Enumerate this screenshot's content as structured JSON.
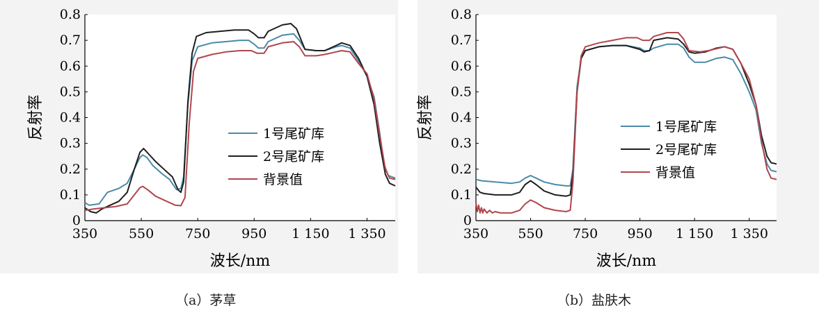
{
  "chart_data": [
    {
      "type": "line",
      "caption": "（a）茅草",
      "xlabel": "波长/nm",
      "ylabel": "反射率",
      "xlim": [
        350,
        1450
      ],
      "ylim": [
        0,
        0.8
      ],
      "xticks": [
        350,
        550,
        750,
        950,
        1150,
        1350
      ],
      "xtick_labels": [
        "350",
        "550",
        "750",
        "950",
        "1 150",
        "1 350"
      ],
      "yticks": [
        0,
        0.1,
        0.2,
        0.3,
        0.4,
        0.5,
        0.6,
        0.7,
        0.8
      ],
      "ytick_labels": [
        "0",
        "0.1",
        "0.2",
        "0.3",
        "0.4",
        "0.5",
        "0.6",
        "0.7",
        "0.8"
      ],
      "legend_position": "center-right",
      "series": [
        {
          "name": "1号尾矿库",
          "color": "#4a8aa8",
          "points": [
            [
              350,
              0.07
            ],
            [
              365,
              0.06
            ],
            [
              400,
              0.065
            ],
            [
              430,
              0.11
            ],
            [
              470,
              0.125
            ],
            [
              500,
              0.145
            ],
            [
              525,
              0.2
            ],
            [
              545,
              0.245
            ],
            [
              555,
              0.255
            ],
            [
              570,
              0.245
            ],
            [
              590,
              0.215
            ],
            [
              620,
              0.185
            ],
            [
              650,
              0.16
            ],
            [
              675,
              0.12
            ],
            [
              690,
              0.125
            ],
            [
              700,
              0.17
            ],
            [
              715,
              0.45
            ],
            [
              730,
              0.62
            ],
            [
              750,
              0.675
            ],
            [
              800,
              0.69
            ],
            [
              850,
              0.695
            ],
            [
              900,
              0.7
            ],
            [
              930,
              0.7
            ],
            [
              950,
              0.685
            ],
            [
              965,
              0.67
            ],
            [
              985,
              0.67
            ],
            [
              1000,
              0.695
            ],
            [
              1050,
              0.72
            ],
            [
              1090,
              0.725
            ],
            [
              1110,
              0.7
            ],
            [
              1130,
              0.665
            ],
            [
              1170,
              0.66
            ],
            [
              1200,
              0.66
            ],
            [
              1240,
              0.675
            ],
            [
              1260,
              0.68
            ],
            [
              1290,
              0.67
            ],
            [
              1320,
              0.62
            ],
            [
              1350,
              0.56
            ],
            [
              1375,
              0.48
            ],
            [
              1395,
              0.34
            ],
            [
              1410,
              0.22
            ],
            [
              1425,
              0.175
            ],
            [
              1450,
              0.165
            ]
          ]
        },
        {
          "name": "2号尾矿库",
          "color": "#1e1e1e",
          "points": [
            [
              350,
              0.05
            ],
            [
              370,
              0.035
            ],
            [
              390,
              0.03
            ],
            [
              410,
              0.045
            ],
            [
              440,
              0.06
            ],
            [
              470,
              0.075
            ],
            [
              500,
              0.11
            ],
            [
              525,
              0.2
            ],
            [
              545,
              0.265
            ],
            [
              558,
              0.28
            ],
            [
              575,
              0.26
            ],
            [
              600,
              0.23
            ],
            [
              630,
              0.2
            ],
            [
              660,
              0.17
            ],
            [
              680,
              0.12
            ],
            [
              690,
              0.11
            ],
            [
              700,
              0.15
            ],
            [
              715,
              0.46
            ],
            [
              730,
              0.65
            ],
            [
              745,
              0.715
            ],
            [
              780,
              0.73
            ],
            [
              830,
              0.735
            ],
            [
              880,
              0.74
            ],
            [
              930,
              0.74
            ],
            [
              950,
              0.725
            ],
            [
              965,
              0.71
            ],
            [
              985,
              0.71
            ],
            [
              1000,
              0.735
            ],
            [
              1050,
              0.76
            ],
            [
              1080,
              0.765
            ],
            [
              1100,
              0.745
            ],
            [
              1130,
              0.665
            ],
            [
              1170,
              0.66
            ],
            [
              1200,
              0.66
            ],
            [
              1240,
              0.68
            ],
            [
              1260,
              0.69
            ],
            [
              1290,
              0.68
            ],
            [
              1320,
              0.63
            ],
            [
              1350,
              0.56
            ],
            [
              1375,
              0.45
            ],
            [
              1395,
              0.3
            ],
            [
              1415,
              0.18
            ],
            [
              1430,
              0.145
            ],
            [
              1450,
              0.135
            ]
          ]
        },
        {
          "name": "背景值",
          "color": "#b0454c",
          "points": [
            [
              350,
              0.04
            ],
            [
              380,
              0.045
            ],
            [
              420,
              0.05
            ],
            [
              460,
              0.055
            ],
            [
              500,
              0.065
            ],
            [
              525,
              0.1
            ],
            [
              545,
              0.128
            ],
            [
              555,
              0.133
            ],
            [
              575,
              0.118
            ],
            [
              600,
              0.095
            ],
            [
              640,
              0.075
            ],
            [
              670,
              0.06
            ],
            [
              690,
              0.058
            ],
            [
              705,
              0.09
            ],
            [
              720,
              0.38
            ],
            [
              735,
              0.58
            ],
            [
              750,
              0.63
            ],
            [
              800,
              0.645
            ],
            [
              850,
              0.655
            ],
            [
              900,
              0.66
            ],
            [
              940,
              0.66
            ],
            [
              960,
              0.65
            ],
            [
              985,
              0.65
            ],
            [
              1000,
              0.675
            ],
            [
              1050,
              0.69
            ],
            [
              1090,
              0.695
            ],
            [
              1110,
              0.675
            ],
            [
              1130,
              0.64
            ],
            [
              1170,
              0.64
            ],
            [
              1200,
              0.645
            ],
            [
              1240,
              0.655
            ],
            [
              1260,
              0.66
            ],
            [
              1290,
              0.655
            ],
            [
              1320,
              0.61
            ],
            [
              1350,
              0.57
            ],
            [
              1375,
              0.47
            ],
            [
              1395,
              0.33
            ],
            [
              1415,
              0.2
            ],
            [
              1430,
              0.165
            ],
            [
              1450,
              0.16
            ]
          ]
        }
      ]
    },
    {
      "type": "line",
      "caption": "（b）盐肤木",
      "xlabel": "波长/nm",
      "ylabel": "反射率",
      "xlim": [
        350,
        1450
      ],
      "ylim": [
        0,
        0.8
      ],
      "xticks": [
        350,
        550,
        750,
        950,
        1150,
        1350
      ],
      "xtick_labels": [
        "350",
        "550",
        "750",
        "950",
        "1 150",
        "1 350"
      ],
      "yticks": [
        0,
        0.1,
        0.2,
        0.3,
        0.4,
        0.5,
        0.6,
        0.7,
        0.8
      ],
      "ytick_labels": [
        "0",
        "0.1",
        "0.2",
        "0.3",
        "0.4",
        "0.5",
        "0.6",
        "0.7",
        "0.8"
      ],
      "legend_position": "center-right",
      "series": [
        {
          "name": "1号尾矿库",
          "color": "#4a8aa8",
          "points": [
            [
              350,
              0.16
            ],
            [
              370,
              0.155
            ],
            [
              420,
              0.15
            ],
            [
              480,
              0.145
            ],
            [
              510,
              0.15
            ],
            [
              530,
              0.165
            ],
            [
              550,
              0.175
            ],
            [
              570,
              0.165
            ],
            [
              600,
              0.15
            ],
            [
              640,
              0.14
            ],
            [
              680,
              0.135
            ],
            [
              695,
              0.135
            ],
            [
              705,
              0.2
            ],
            [
              720,
              0.52
            ],
            [
              735,
              0.63
            ],
            [
              750,
              0.66
            ],
            [
              800,
              0.675
            ],
            [
              850,
              0.68
            ],
            [
              900,
              0.68
            ],
            [
              950,
              0.67
            ],
            [
              965,
              0.66
            ],
            [
              985,
              0.66
            ],
            [
              1000,
              0.67
            ],
            [
              1050,
              0.685
            ],
            [
              1090,
              0.685
            ],
            [
              1110,
              0.67
            ],
            [
              1130,
              0.635
            ],
            [
              1150,
              0.615
            ],
            [
              1190,
              0.615
            ],
            [
              1230,
              0.63
            ],
            [
              1260,
              0.635
            ],
            [
              1290,
              0.625
            ],
            [
              1320,
              0.57
            ],
            [
              1350,
              0.5
            ],
            [
              1375,
              0.43
            ],
            [
              1395,
              0.3
            ],
            [
              1415,
              0.22
            ],
            [
              1430,
              0.195
            ],
            [
              1450,
              0.19
            ]
          ]
        },
        {
          "name": "2号尾矿库",
          "color": "#1e1e1e",
          "points": [
            [
              350,
              0.13
            ],
            [
              365,
              0.11
            ],
            [
              380,
              0.105
            ],
            [
              420,
              0.1
            ],
            [
              480,
              0.1
            ],
            [
              510,
              0.11
            ],
            [
              530,
              0.14
            ],
            [
              550,
              0.155
            ],
            [
              570,
              0.14
            ],
            [
              600,
              0.115
            ],
            [
              640,
              0.1
            ],
            [
              680,
              0.095
            ],
            [
              695,
              0.1
            ],
            [
              705,
              0.18
            ],
            [
              720,
              0.5
            ],
            [
              735,
              0.63
            ],
            [
              750,
              0.66
            ],
            [
              800,
              0.675
            ],
            [
              850,
              0.68
            ],
            [
              900,
              0.68
            ],
            [
              950,
              0.665
            ],
            [
              965,
              0.655
            ],
            [
              985,
              0.66
            ],
            [
              1000,
              0.7
            ],
            [
              1050,
              0.71
            ],
            [
              1090,
              0.705
            ],
            [
              1110,
              0.685
            ],
            [
              1130,
              0.655
            ],
            [
              1150,
              0.65
            ],
            [
              1190,
              0.655
            ],
            [
              1230,
              0.67
            ],
            [
              1260,
              0.675
            ],
            [
              1290,
              0.665
            ],
            [
              1320,
              0.61
            ],
            [
              1350,
              0.53
            ],
            [
              1375,
              0.45
            ],
            [
              1395,
              0.33
            ],
            [
              1415,
              0.25
            ],
            [
              1430,
              0.225
            ],
            [
              1450,
              0.22
            ]
          ]
        },
        {
          "name": "背景值",
          "color": "#b0454c",
          "points": [
            [
              350,
              0.07
            ],
            [
              355,
              0.035
            ],
            [
              360,
              0.06
            ],
            [
              365,
              0.03
            ],
            [
              370,
              0.05
            ],
            [
              375,
              0.03
            ],
            [
              380,
              0.045
            ],
            [
              390,
              0.03
            ],
            [
              400,
              0.04
            ],
            [
              410,
              0.03
            ],
            [
              420,
              0.035
            ],
            [
              440,
              0.03
            ],
            [
              480,
              0.03
            ],
            [
              510,
              0.04
            ],
            [
              530,
              0.065
            ],
            [
              550,
              0.08
            ],
            [
              570,
              0.07
            ],
            [
              600,
              0.05
            ],
            [
              640,
              0.04
            ],
            [
              680,
              0.035
            ],
            [
              695,
              0.04
            ],
            [
              705,
              0.15
            ],
            [
              720,
              0.5
            ],
            [
              735,
              0.64
            ],
            [
              750,
              0.675
            ],
            [
              800,
              0.69
            ],
            [
              850,
              0.7
            ],
            [
              900,
              0.71
            ],
            [
              940,
              0.71
            ],
            [
              960,
              0.7
            ],
            [
              985,
              0.7
            ],
            [
              1000,
              0.715
            ],
            [
              1050,
              0.73
            ],
            [
              1090,
              0.73
            ],
            [
              1110,
              0.705
            ],
            [
              1130,
              0.66
            ],
            [
              1170,
              0.655
            ],
            [
              1200,
              0.66
            ],
            [
              1240,
              0.67
            ],
            [
              1260,
              0.675
            ],
            [
              1290,
              0.665
            ],
            [
              1320,
              0.61
            ],
            [
              1350,
              0.55
            ],
            [
              1375,
              0.45
            ],
            [
              1395,
              0.31
            ],
            [
              1415,
              0.2
            ],
            [
              1430,
              0.165
            ],
            [
              1450,
              0.16
            ]
          ]
        }
      ]
    }
  ]
}
